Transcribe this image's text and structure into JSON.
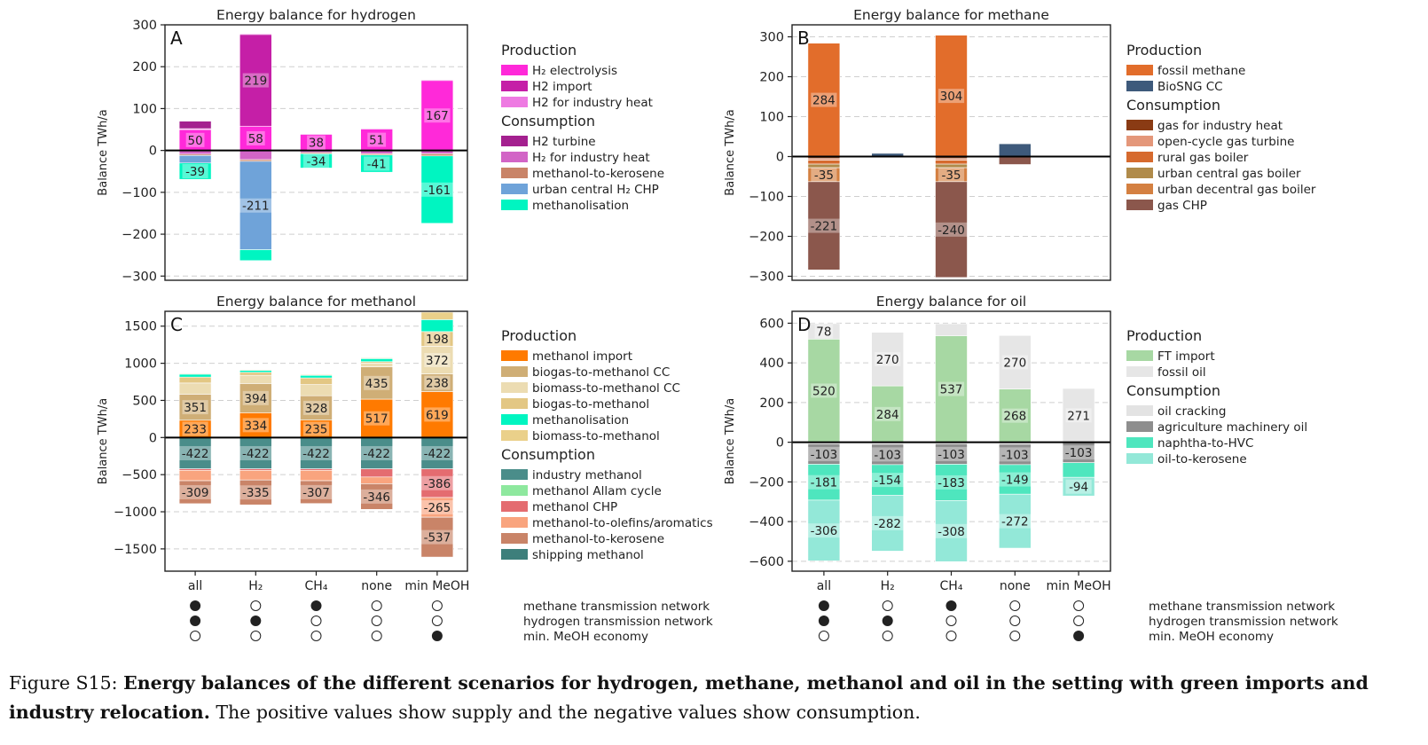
{
  "caption": {
    "label": "Figure S15:",
    "bold": "Energy balances of the different scenarios for hydrogen, methane, methanol and oil in the setting with green imports and industry relocation.",
    "rest": "The positive values show supply and the negative values show consumption."
  },
  "scenario_rows": [
    "methane transmission network",
    "hydrogen transmission network",
    "min. MeOH economy"
  ],
  "scenario_matrix": [
    [
      1,
      1,
      0
    ],
    [
      0,
      1,
      0
    ],
    [
      1,
      0,
      0
    ],
    [
      0,
      0,
      0
    ],
    [
      0,
      0,
      1
    ]
  ],
  "chart_data": [
    {
      "panel_letter": "A",
      "type": "bar",
      "stacked": true,
      "title": "Energy balance for hydrogen",
      "ylabel": "Balance TWh/a",
      "ylim": [
        -310,
        300
      ],
      "yticks": [
        300,
        200,
        100,
        0,
        -100,
        -200,
        -300
      ],
      "categories": [
        "all",
        "H₂",
        "CH₄",
        "none",
        "min MeOH"
      ],
      "legend": [
        {
          "heading": "Production",
          "entries": [
            {
              "label": "H₂ electrolysis",
              "color": "#ff29d9"
            },
            {
              "label": "H2 import",
              "color": "#c51fa7"
            },
            {
              "label": "H2 for industry heat",
              "color": "#ee7ae2"
            }
          ]
        },
        {
          "heading": "Consumption",
          "entries": [
            {
              "label": "H2 turbine",
              "color": "#a4208f"
            },
            {
              "label": "H₂ for industry heat",
              "color": "#d265c6"
            },
            {
              "label": "methanol-to-kerosene",
              "color": "#c98468"
            },
            {
              "label": "urban central H₂ CHP",
              "color": "#6fa3d9"
            },
            {
              "label": "methanolisation",
              "color": "#00f5c1"
            }
          ]
        }
      ],
      "series": [
        {
          "name": "H₂ electrolysis",
          "color": "#ff29d9",
          "values": [
            50,
            58,
            38,
            51,
            167
          ]
        },
        {
          "name": "H2 import",
          "color": "#c51fa7",
          "values": [
            0,
            219,
            0,
            0,
            0
          ]
        },
        {
          "name": "H2 for industry heat",
          "color": "#ee7ae2",
          "values": [
            2,
            2,
            2,
            2,
            2
          ]
        },
        {
          "name": "H2 turbine",
          "color": "#a4208f",
          "values": [
            18,
            0,
            0,
            0,
            0
          ]
        },
        {
          "name": "H₂ for industry heat",
          "color": "#d265c6",
          "values": [
            -9,
            -22,
            -5,
            -8,
            -8
          ]
        },
        {
          "name": "methanol-to-kerosene",
          "color": "#c98468",
          "values": [
            -3,
            -4,
            -3,
            -3,
            -5
          ]
        },
        {
          "name": "urban central H₂ CHP",
          "color": "#6fa3d9",
          "values": [
            -18,
            -211,
            0,
            0,
            0
          ]
        },
        {
          "name": "methanolisation",
          "color": "#00f5c1",
          "values": [
            -39,
            -26,
            -34,
            -41,
            -161
          ]
        }
      ],
      "labels": [
        {
          "cat": 0,
          "value": 50,
          "text": "50"
        },
        {
          "cat": 1,
          "value": 58,
          "text": "58"
        },
        {
          "cat": 1,
          "value": 219,
          "text": "219"
        },
        {
          "cat": 2,
          "value": 38,
          "text": "38"
        },
        {
          "cat": 3,
          "value": 51,
          "text": "51"
        },
        {
          "cat": 4,
          "value": 167,
          "text": "167"
        },
        {
          "cat": 0,
          "value": -39,
          "text": "-39"
        },
        {
          "cat": 1,
          "value": -211,
          "text": "-211"
        },
        {
          "cat": 2,
          "value": -34,
          "text": "-34"
        },
        {
          "cat": 3,
          "value": -41,
          "text": "-41"
        },
        {
          "cat": 4,
          "value": -161,
          "text": "-161"
        }
      ]
    },
    {
      "panel_letter": "B",
      "type": "bar",
      "stacked": true,
      "title": "Energy balance for methane",
      "ylabel": "Balance TWh/a",
      "ylim": [
        -310,
        330
      ],
      "yticks": [
        300,
        200,
        100,
        0,
        -100,
        -200,
        -300
      ],
      "categories": [
        "all",
        "H₂",
        "CH₄",
        "none",
        "min MeOH"
      ],
      "legend": [
        {
          "heading": "Production",
          "entries": [
            {
              "label": "fossil methane",
              "color": "#e26d2b"
            },
            {
              "label": "BioSNG CC",
              "color": "#3e5a7b"
            }
          ]
        },
        {
          "heading": "Consumption",
          "entries": [
            {
              "label": "gas for industry heat",
              "color": "#8a3b14"
            },
            {
              "label": "open-cycle gas turbine",
              "color": "#e4977a"
            },
            {
              "label": "rural gas boiler",
              "color": "#d66a2e"
            },
            {
              "label": "urban central gas boiler",
              "color": "#b08b4a"
            },
            {
              "label": "urban decentral gas boiler",
              "color": "#d48041"
            },
            {
              "label": "gas CHP",
              "color": "#8b574c"
            }
          ]
        }
      ],
      "series": [
        {
          "name": "fossil methane",
          "color": "#e26d2b",
          "values": [
            284,
            0,
            304,
            0,
            0
          ]
        },
        {
          "name": "BioSNG CC",
          "color": "#3e5a7b",
          "values": [
            0,
            8,
            0,
            32,
            0
          ]
        },
        {
          "name": "gas for industry heat",
          "color": "#8a3b14",
          "values": [
            -5,
            0,
            -5,
            0,
            0
          ]
        },
        {
          "name": "open-cycle gas turbine",
          "color": "#e4977a",
          "values": [
            -4,
            0,
            -4,
            0,
            0
          ]
        },
        {
          "name": "rural gas boiler",
          "color": "#d66a2e",
          "values": [
            -10,
            0,
            -10,
            0,
            0
          ]
        },
        {
          "name": "urban central gas boiler",
          "color": "#b08b4a",
          "values": [
            -9,
            0,
            -9,
            0,
            0
          ]
        },
        {
          "name": "urban decentral gas boiler",
          "color": "#d48041",
          "values": [
            -35,
            0,
            -35,
            0,
            0
          ]
        },
        {
          "name": "gas CHP",
          "color": "#8b574c",
          "values": [
            -221,
            0,
            -240,
            -20,
            0
          ]
        }
      ],
      "labels": [
        {
          "cat": 0,
          "value": 284,
          "text": "284"
        },
        {
          "cat": 2,
          "value": 304,
          "text": "304"
        },
        {
          "cat": 0,
          "value": -35,
          "text": "-35"
        },
        {
          "cat": 2,
          "value": -35,
          "text": "-35"
        },
        {
          "cat": 0,
          "value": -221,
          "text": "-221"
        },
        {
          "cat": 2,
          "value": -240,
          "text": "-240"
        }
      ]
    },
    {
      "panel_letter": "C",
      "type": "bar",
      "stacked": true,
      "title": "Energy balance for methanol",
      "ylabel": "Balance TWh/a",
      "ylim": [
        -1800,
        1700
      ],
      "yticks": [
        1500,
        1000,
        500,
        0,
        -500,
        -1000,
        -1500
      ],
      "categories": [
        "all",
        "H₂",
        "CH₄",
        "none",
        "min MeOH"
      ],
      "legend": [
        {
          "heading": "Production",
          "entries": [
            {
              "label": "methanol import",
              "color": "#ff7a00"
            },
            {
              "label": "biogas-to-methanol CC",
              "color": "#cfae76"
            },
            {
              "label": "biomass-to-methanol CC",
              "color": "#ecdcb2"
            },
            {
              "label": "biogas-to-methanol",
              "color": "#e3c784"
            },
            {
              "label": "methanolisation",
              "color": "#00f5c1"
            },
            {
              "label": "biomass-to-methanol",
              "color": "#ead08a"
            }
          ]
        },
        {
          "heading": "Consumption",
          "entries": [
            {
              "label": "industry methanol",
              "color": "#4a8d8a"
            },
            {
              "label": "methanol Allam cycle",
              "color": "#8ee89e"
            },
            {
              "label": "methanol CHP",
              "color": "#e46c70"
            },
            {
              "label": "methanol-to-olefins/aromatics",
              "color": "#f9a47e"
            },
            {
              "label": "methanol-to-kerosene",
              "color": "#c98468"
            },
            {
              "label": "shipping methanol",
              "color": "#3d7f7b"
            }
          ]
        }
      ],
      "series": [
        {
          "name": "methanol import",
          "color": "#ff7a00",
          "values": [
            233,
            334,
            235,
            517,
            619
          ]
        },
        {
          "name": "biogas-to-methanol CC",
          "color": "#cfae76",
          "values": [
            351,
            394,
            328,
            435,
            238
          ]
        },
        {
          "name": "biomass-to-methanol CC",
          "color": "#ecdcb2",
          "values": [
            150,
            110,
            150,
            50,
            372
          ]
        },
        {
          "name": "biogas-to-methanol",
          "color": "#e3c784",
          "values": [
            80,
            40,
            90,
            20,
            198
          ]
        },
        {
          "name": "methanolisation",
          "color": "#00f5c1",
          "values": [
            39,
            26,
            34,
            41,
            161
          ]
        },
        {
          "name": "biomass-to-methanol",
          "color": "#ead08a",
          "values": [
            10,
            10,
            10,
            10,
            100
          ]
        },
        {
          "name": "industry methanol",
          "color": "#4a8d8a",
          "values": [
            -422,
            -422,
            -422,
            -422,
            -422
          ]
        },
        {
          "name": "methanol Allam cycle",
          "color": "#8ee89e",
          "values": [
            0,
            0,
            0,
            0,
            0
          ]
        },
        {
          "name": "methanol CHP",
          "color": "#e46c70",
          "values": [
            -20,
            -20,
            -20,
            -110,
            -386
          ]
        },
        {
          "name": "methanol-to-olefins/aromatics",
          "color": "#f9a47e",
          "values": [
            -140,
            -130,
            -140,
            -90,
            -265
          ]
        },
        {
          "name": "methanol-to-kerosene",
          "color": "#c98468",
          "values": [
            -309,
            -335,
            -307,
            -346,
            -537
          ]
        },
        {
          "name": "shipping methanol",
          "color": "#3d7f7b",
          "values": [
            0,
            0,
            0,
            0,
            0
          ]
        }
      ],
      "labels": [
        {
          "cat": 0,
          "value": 233,
          "text": "233"
        },
        {
          "cat": 1,
          "value": 334,
          "text": "334"
        },
        {
          "cat": 2,
          "value": 235,
          "text": "235"
        },
        {
          "cat": 3,
          "value": 517,
          "text": "517"
        },
        {
          "cat": 4,
          "value": 619,
          "text": "619"
        },
        {
          "cat": 0,
          "value": 351,
          "text": "351"
        },
        {
          "cat": 1,
          "value": 394,
          "text": "394"
        },
        {
          "cat": 2,
          "value": 328,
          "text": "328"
        },
        {
          "cat": 3,
          "value": 435,
          "text": "435"
        },
        {
          "cat": 4,
          "value": 238,
          "text": "238"
        },
        {
          "cat": 4,
          "value": 372,
          "text": "372"
        },
        {
          "cat": 4,
          "value": 198,
          "text": "198"
        },
        {
          "cat": 0,
          "value": -309,
          "text": "-309"
        },
        {
          "cat": 1,
          "value": -335,
          "text": "-335"
        },
        {
          "cat": 2,
          "value": -307,
          "text": "-307"
        },
        {
          "cat": 3,
          "value": -346,
          "text": "-346"
        },
        {
          "cat": 4,
          "value": -386,
          "text": "-386"
        },
        {
          "cat": 4,
          "value": -265,
          "text": "-265"
        },
        {
          "cat": 4,
          "value": -537,
          "text": "-537"
        },
        {
          "cat": 0,
          "value": -422,
          "text": "-422"
        },
        {
          "cat": 1,
          "value": -422,
          "text": "-422"
        },
        {
          "cat": 2,
          "value": -422,
          "text": "-422"
        },
        {
          "cat": 3,
          "value": -422,
          "text": "-422"
        },
        {
          "cat": 4,
          "value": -422,
          "text": "-422"
        }
      ]
    },
    {
      "panel_letter": "D",
      "type": "bar",
      "stacked": true,
      "title": "Energy balance for oil",
      "ylabel": "Balance TWh/a",
      "ylim": [
        -650,
        660
      ],
      "yticks": [
        600,
        400,
        200,
        0,
        -200,
        -400,
        -600
      ],
      "categories": [
        "all",
        "H₂",
        "CH₄",
        "none",
        "min MeOH"
      ],
      "legend": [
        {
          "heading": "Production",
          "entries": [
            {
              "label": "FT import",
              "color": "#a7d8a3"
            },
            {
              "label": "fossil oil",
              "color": "#e6e6e6"
            }
          ]
        },
        {
          "heading": "Consumption",
          "entries": [
            {
              "label": "oil cracking",
              "color": "#e3e3e3"
            },
            {
              "label": "agriculture machinery oil",
              "color": "#8e8e8e"
            },
            {
              "label": "naphtha-to-HVC",
              "color": "#4ee6be"
            },
            {
              "label": "oil-to-kerosene",
              "color": "#93e8d8"
            }
          ]
        }
      ],
      "series": [
        {
          "name": "FT import",
          "color": "#a7d8a3",
          "values": [
            520,
            284,
            537,
            268,
            0
          ]
        },
        {
          "name": "fossil oil",
          "color": "#e6e6e6",
          "values": [
            78,
            270,
            60,
            270,
            271
          ]
        },
        {
          "name": "oil cracking",
          "color": "#e3e3e3",
          "values": [
            -8,
            -10,
            -8,
            -10,
            0
          ]
        },
        {
          "name": "agriculture machinery oil",
          "color": "#8e8e8e",
          "values": [
            -103,
            -103,
            -103,
            -103,
            -103
          ]
        },
        {
          "name": "naphtha-to-HVC",
          "color": "#4ee6be",
          "values": [
            -181,
            -154,
            -183,
            -149,
            -74
          ]
        },
        {
          "name": "oil-to-kerosene",
          "color": "#93e8d8",
          "values": [
            -306,
            -282,
            -308,
            -272,
            -94
          ]
        }
      ],
      "labels": [
        {
          "cat": 0,
          "value": 78,
          "text": "78"
        },
        {
          "cat": 1,
          "value": 270,
          "text": "270"
        },
        {
          "cat": 3,
          "value": 270,
          "text": "270"
        },
        {
          "cat": 4,
          "value": 271,
          "text": "271"
        },
        {
          "cat": 0,
          "value": 520,
          "text": "520"
        },
        {
          "cat": 1,
          "value": 284,
          "text": "284"
        },
        {
          "cat": 2,
          "value": 537,
          "text": "537"
        },
        {
          "cat": 3,
          "value": 268,
          "text": "268"
        },
        {
          "cat": 0,
          "value": -103,
          "text": "-103"
        },
        {
          "cat": 1,
          "value": -103,
          "text": "-103"
        },
        {
          "cat": 2,
          "value": -103,
          "text": "-103"
        },
        {
          "cat": 3,
          "value": -103,
          "text": "-103"
        },
        {
          "cat": 4,
          "value": -103,
          "text": "-103"
        },
        {
          "cat": 0,
          "value": -181,
          "text": "-181"
        },
        {
          "cat": 1,
          "value": -154,
          "text": "-154"
        },
        {
          "cat": 2,
          "value": -183,
          "text": "-183"
        },
        {
          "cat": 3,
          "value": -149,
          "text": "-149"
        },
        {
          "cat": 4,
          "value": -94,
          "text": "-94"
        },
        {
          "cat": 0,
          "value": -306,
          "text": "-306"
        },
        {
          "cat": 1,
          "value": -282,
          "text": "-282"
        },
        {
          "cat": 2,
          "value": -308,
          "text": "-308"
        },
        {
          "cat": 3,
          "value": -272,
          "text": "-272"
        }
      ]
    }
  ]
}
